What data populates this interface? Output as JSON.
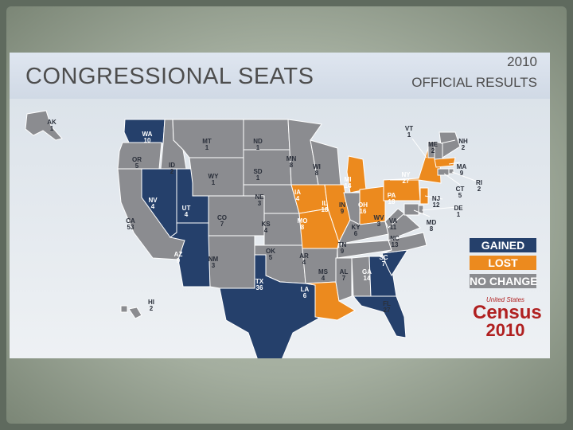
{
  "header": {
    "title": "CONGRESSIONAL SEATS",
    "year": "2010",
    "results": "OFFICIAL RESULTS"
  },
  "colors": {
    "gained": "#25406b",
    "lost": "#ec8a1e",
    "no_change": "#8b8c90",
    "border": "#ffffff"
  },
  "legend": [
    {
      "label": "GAINED",
      "status": "gained"
    },
    {
      "label": "LOST",
      "status": "lost"
    },
    {
      "label": "NO CHANGE",
      "status": "no_change"
    }
  ],
  "logo": {
    "line1": "United States",
    "line2": "Census",
    "line3": "2010"
  },
  "states": [
    {
      "abbr": "AK",
      "seats": "1",
      "status": "no_change"
    },
    {
      "abbr": "WA",
      "seats": "10",
      "status": "gained"
    },
    {
      "abbr": "OR",
      "seats": "5",
      "status": "no_change"
    },
    {
      "abbr": "CA",
      "seats": "53",
      "status": "no_change"
    },
    {
      "abbr": "ID",
      "seats": "2",
      "status": "no_change"
    },
    {
      "abbr": "NV",
      "seats": "4",
      "status": "gained"
    },
    {
      "abbr": "UT",
      "seats": "4",
      "status": "gained"
    },
    {
      "abbr": "AZ",
      "seats": "9",
      "status": "gained"
    },
    {
      "abbr": "MT",
      "seats": "1",
      "status": "no_change"
    },
    {
      "abbr": "WY",
      "seats": "1",
      "status": "no_change"
    },
    {
      "abbr": "CO",
      "seats": "7",
      "status": "no_change"
    },
    {
      "abbr": "NM",
      "seats": "3",
      "status": "no_change"
    },
    {
      "abbr": "ND",
      "seats": "1",
      "status": "no_change"
    },
    {
      "abbr": "SD",
      "seats": "1",
      "status": "no_change"
    },
    {
      "abbr": "NE",
      "seats": "3",
      "status": "no_change"
    },
    {
      "abbr": "KS",
      "seats": "4",
      "status": "no_change"
    },
    {
      "abbr": "OK",
      "seats": "5",
      "status": "no_change"
    },
    {
      "abbr": "TX",
      "seats": "36",
      "status": "gained"
    },
    {
      "abbr": "MN",
      "seats": "8",
      "status": "no_change"
    },
    {
      "abbr": "IA",
      "seats": "4",
      "status": "lost"
    },
    {
      "abbr": "MO",
      "seats": "8",
      "status": "lost"
    },
    {
      "abbr": "AR",
      "seats": "4",
      "status": "no_change"
    },
    {
      "abbr": "LA",
      "seats": "6",
      "status": "lost"
    },
    {
      "abbr": "WI",
      "seats": "8",
      "status": "no_change"
    },
    {
      "abbr": "IL",
      "seats": "18",
      "status": "lost"
    },
    {
      "abbr": "MI",
      "seats": "14",
      "status": "lost"
    },
    {
      "abbr": "IN",
      "seats": "9",
      "status": "no_change"
    },
    {
      "abbr": "OH",
      "seats": "16",
      "status": "lost"
    },
    {
      "abbr": "KY",
      "seats": "6",
      "status": "no_change"
    },
    {
      "abbr": "TN",
      "seats": "9",
      "status": "no_change"
    },
    {
      "abbr": "MS",
      "seats": "4",
      "status": "no_change"
    },
    {
      "abbr": "AL",
      "seats": "7",
      "status": "no_change"
    },
    {
      "abbr": "GA",
      "seats": "14",
      "status": "gained"
    },
    {
      "abbr": "FL",
      "seats": "27",
      "status": "gained"
    },
    {
      "abbr": "SC",
      "seats": "7",
      "status": "gained"
    },
    {
      "abbr": "NC",
      "seats": "13",
      "status": "no_change"
    },
    {
      "abbr": "VA",
      "seats": "11",
      "status": "no_change"
    },
    {
      "abbr": "WV",
      "seats": "3",
      "status": "no_change"
    },
    {
      "abbr": "PA",
      "seats": "18",
      "status": "lost"
    },
    {
      "abbr": "NY",
      "seats": "27",
      "status": "lost"
    },
    {
      "abbr": "VT",
      "seats": "1",
      "status": "no_change"
    },
    {
      "abbr": "ME",
      "seats": "2",
      "status": "no_change"
    },
    {
      "abbr": "NH",
      "seats": "2",
      "status": "no_change"
    },
    {
      "abbr": "MA",
      "seats": "9",
      "status": "lost"
    },
    {
      "abbr": "RI",
      "seats": "2",
      "status": "no_change"
    },
    {
      "abbr": "CT",
      "seats": "5",
      "status": "no_change"
    },
    {
      "abbr": "NJ",
      "seats": "12",
      "status": "lost"
    },
    {
      "abbr": "DE",
      "seats": "1",
      "status": "no_change"
    },
    {
      "abbr": "MD",
      "seats": "8",
      "status": "no_change"
    },
    {
      "abbr": "HI",
      "seats": "2",
      "status": "no_change"
    }
  ]
}
